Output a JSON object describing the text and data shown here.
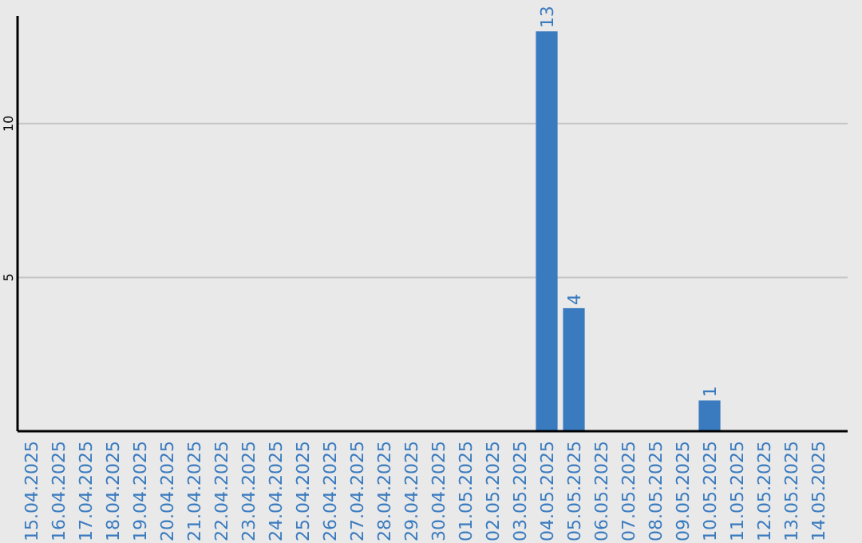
{
  "chart_data": {
    "type": "bar",
    "categories": [
      "15.04.2025",
      "16.04.2025",
      "17.04.2025",
      "18.04.2025",
      "19.04.2025",
      "20.04.2025",
      "21.04.2025",
      "22.04.2025",
      "23.04.2025",
      "24.04.2025",
      "25.04.2025",
      "26.04.2025",
      "27.04.2025",
      "28.04.2025",
      "29.04.2025",
      "30.04.2025",
      "01.05.2025",
      "02.05.2025",
      "03.05.2025",
      "04.05.2025",
      "05.05.2025",
      "06.05.2025",
      "07.05.2025",
      "08.05.2025",
      "09.05.2025",
      "10.05.2025",
      "11.05.2025",
      "12.05.2025",
      "13.05.2025",
      "14.05.2025"
    ],
    "values": [
      0,
      0,
      0,
      0,
      0,
      0,
      0,
      0,
      0,
      0,
      0,
      0,
      0,
      0,
      0,
      0,
      0,
      0,
      0,
      13,
      4,
      0,
      0,
      0,
      0,
      1,
      0,
      0,
      0,
      0
    ],
    "value_labels": [
      null,
      null,
      null,
      null,
      null,
      null,
      null,
      null,
      null,
      null,
      null,
      null,
      null,
      null,
      null,
      null,
      null,
      null,
      null,
      "13",
      "4",
      null,
      null,
      null,
      null,
      "1",
      null,
      null,
      null,
      null
    ],
    "color": "#3a7bbf",
    "ylim": [
      0,
      13.5
    ],
    "yticks": [
      5,
      10
    ],
    "grid": "y"
  }
}
